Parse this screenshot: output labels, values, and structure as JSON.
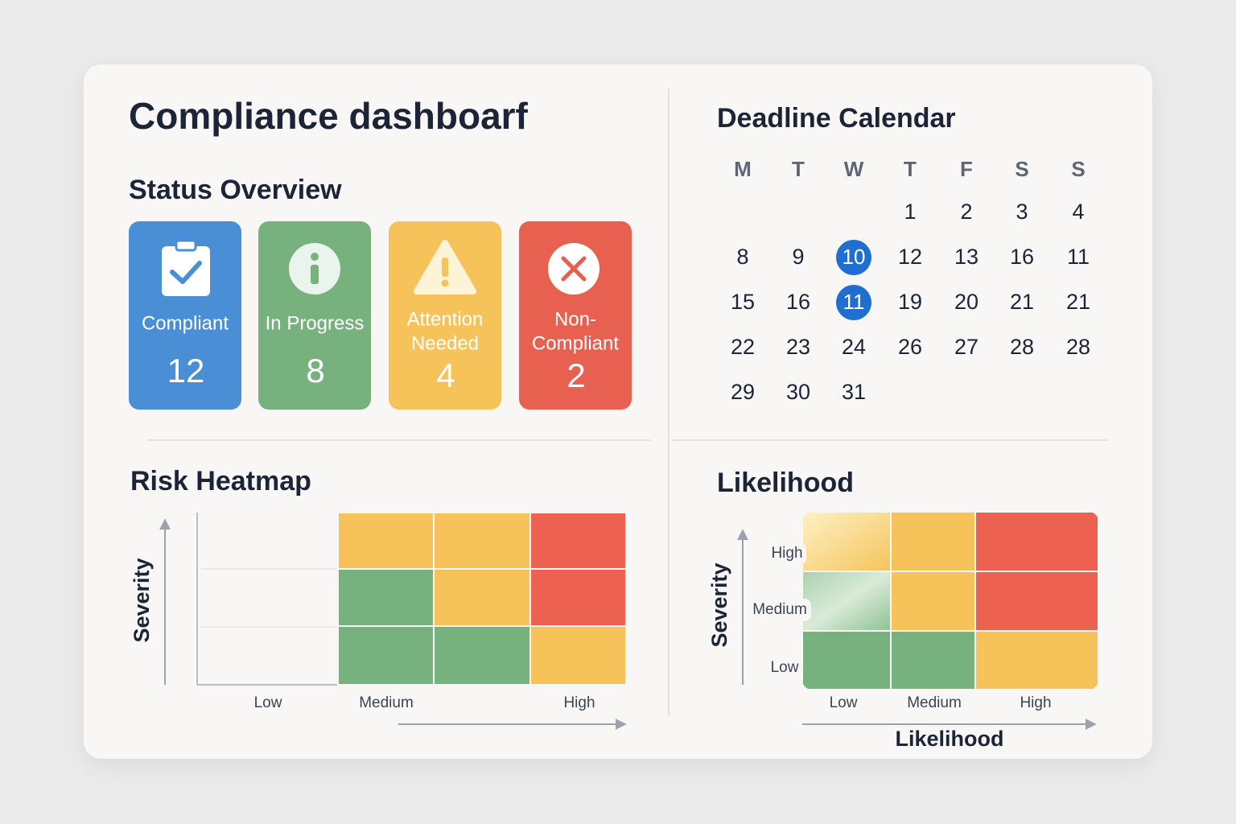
{
  "header": {
    "title": "Compliance dashboarf"
  },
  "status_overview": {
    "title": "Status Overview",
    "cards": [
      {
        "label_lines": [
          "Compliant"
        ],
        "count": 12,
        "color": "#4a8fd6"
      },
      {
        "label_lines": [
          "In Progress"
        ],
        "count": 8,
        "color": "#77b27e"
      },
      {
        "label_lines": [
          "Attention",
          "Needed"
        ],
        "count": 4,
        "color": "#f6c35a"
      },
      {
        "label_lines": [
          "Non-",
          "Compliant"
        ],
        "count": 2,
        "color": "#e8604f"
      }
    ]
  },
  "calendar": {
    "title": "Deadline Calendar",
    "weekdays": [
      "M",
      "T",
      "W",
      "T",
      "F",
      "S",
      "S"
    ],
    "weeks": [
      [
        1,
        2,
        3,
        4
      ],
      [
        8,
        9,
        {
          "day": 10,
          "highlighted": true
        },
        12,
        13,
        16,
        11
      ],
      [
        15,
        16,
        {
          "day": 11,
          "highlighted": true
        },
        19,
        20,
        21,
        21
      ],
      [
        22,
        23,
        24,
        26,
        27,
        28,
        28
      ],
      [
        29,
        30,
        31
      ]
    ]
  },
  "risk_heatmap": {
    "title": "Risk Heatmap",
    "y_axis_title": "Severity",
    "x_labels": [
      "Low",
      "Medium",
      "High"
    ]
  },
  "likelihood_heatmap": {
    "title": "Likelihood",
    "y_axis_title": "Severity",
    "y_labels": [
      "High",
      "Medium",
      "Low"
    ],
    "x_labels": [
      "Low",
      "Medium",
      "High"
    ],
    "x_axis_title": "Likelihood"
  }
}
